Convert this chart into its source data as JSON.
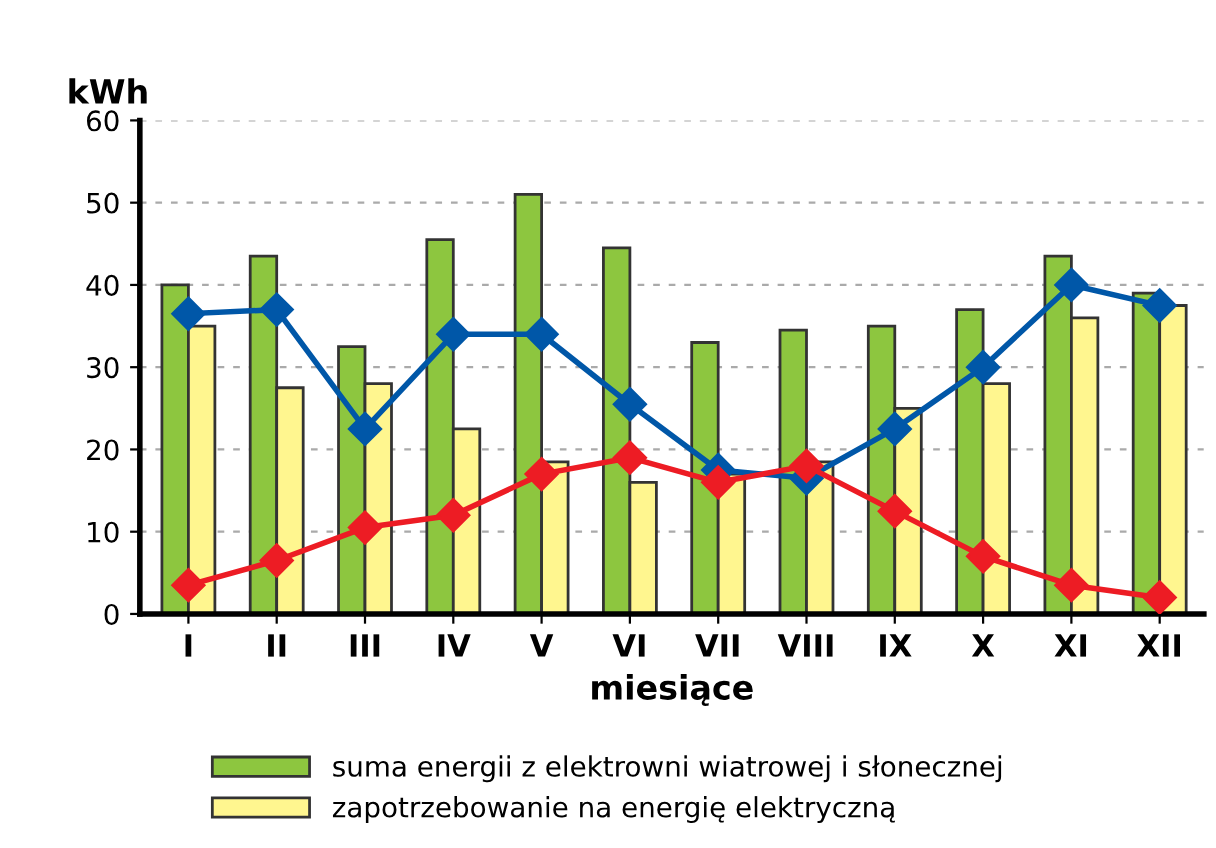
{
  "chart_data": {
    "type": "bar",
    "ylabel": "kWh",
    "xlabel": "miesiące",
    "categories": [
      "I",
      "II",
      "III",
      "IV",
      "V",
      "VI",
      "VII",
      "VIII",
      "IX",
      "X",
      "XI",
      "XII"
    ],
    "series": [
      {
        "name": "suma energii z elektrowni wiatrowej i słonecznej",
        "color": "#8dc63f",
        "values": [
          40,
          43.5,
          32.5,
          45.5,
          51,
          44.5,
          33,
          34.5,
          35,
          37,
          43.5,
          39
        ]
      },
      {
        "name": "zapotrzebowanie na energię elektryczną",
        "color": "#fff68f",
        "values": [
          35,
          27.5,
          28,
          22.5,
          18.5,
          16,
          17,
          18.5,
          25,
          28,
          36,
          37.5
        ]
      },
      {
        "type": "line",
        "color": "#0057a8",
        "values": [
          36.5,
          37,
          22.5,
          34,
          34,
          25.5,
          17.5,
          16.5,
          22.5,
          30,
          40,
          37.5
        ]
      },
      {
        "type": "line",
        "color": "#ed1c24",
        "values": [
          3.5,
          6.5,
          10.5,
          12,
          17,
          19,
          16,
          18,
          12.5,
          7,
          3.5,
          2
        ]
      }
    ],
    "ylim": [
      0,
      60
    ],
    "yticks": [
      0,
      10,
      20,
      30,
      40,
      50,
      60
    ],
    "grid": "y",
    "legend": "bottom",
    "marker": "diamond",
    "line_style": "solid"
  }
}
